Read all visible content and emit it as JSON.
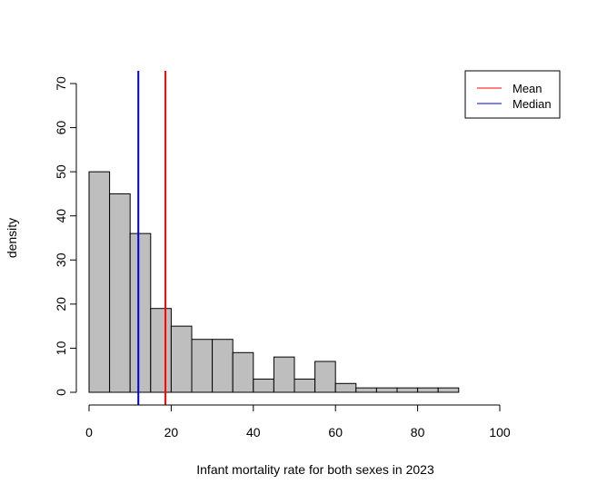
{
  "chart_data": {
    "type": "bar",
    "title": "",
    "xlabel": "Infant mortality rate for both sexes in 2023",
    "ylabel": "density",
    "xlim": [
      0,
      100
    ],
    "ylim": [
      0,
      70
    ],
    "x_ticks": [
      "0",
      "20",
      "40",
      "60",
      "80",
      "100"
    ],
    "y_ticks": [
      "0",
      "10",
      "20",
      "30",
      "40",
      "50",
      "60",
      "70"
    ],
    "bin_width": 5,
    "bins": [
      {
        "start": 0,
        "end": 5,
        "value": 50
      },
      {
        "start": 5,
        "end": 10,
        "value": 45
      },
      {
        "start": 10,
        "end": 15,
        "value": 36
      },
      {
        "start": 15,
        "end": 20,
        "value": 19
      },
      {
        "start": 20,
        "end": 25,
        "value": 15
      },
      {
        "start": 25,
        "end": 30,
        "value": 12
      },
      {
        "start": 30,
        "end": 35,
        "value": 12
      },
      {
        "start": 35,
        "end": 40,
        "value": 9
      },
      {
        "start": 40,
        "end": 45,
        "value": 3
      },
      {
        "start": 45,
        "end": 50,
        "value": 8
      },
      {
        "start": 50,
        "end": 55,
        "value": 3
      },
      {
        "start": 55,
        "end": 60,
        "value": 7
      },
      {
        "start": 60,
        "end": 65,
        "value": 2
      },
      {
        "start": 65,
        "end": 70,
        "value": 1
      },
      {
        "start": 70,
        "end": 75,
        "value": 1
      },
      {
        "start": 75,
        "end": 80,
        "value": 1
      },
      {
        "start": 80,
        "end": 85,
        "value": 1
      },
      {
        "start": 85,
        "end": 90,
        "value": 1
      }
    ],
    "reference_lines": [
      {
        "name": "Mean",
        "x": 18.6,
        "color": "#ff0000"
      },
      {
        "name": "Median",
        "x": 12,
        "color": "#0000cc"
      }
    ],
    "bar_fill": "#bebebe",
    "grid": false,
    "legend": {
      "position": "top-right",
      "entries": [
        {
          "label": "Mean",
          "color": "#ff0000"
        },
        {
          "label": "Median",
          "color": "#0000cc"
        }
      ]
    }
  }
}
